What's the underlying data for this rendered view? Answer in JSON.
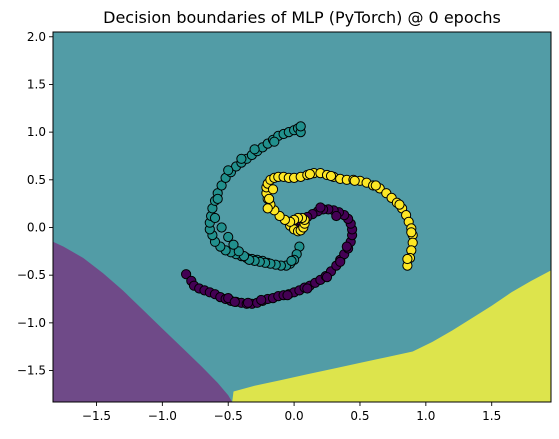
{
  "chart_data": {
    "type": "scatter",
    "title": "Decision boundaries of MLP (PyTorch) @ 0 epochs",
    "xlabel": "",
    "ylabel": "",
    "xlim": [
      -1.83,
      1.95
    ],
    "ylim": [
      -1.83,
      2.05
    ],
    "xticks": [
      -1.5,
      -1.0,
      -0.5,
      0.0,
      0.5,
      1.0,
      1.5
    ],
    "xtick_labels": [
      "−1.5",
      "−1.0",
      "−0.5",
      "0.0",
      "0.5",
      "1.0",
      "1.5"
    ],
    "yticks": [
      -1.5,
      -1.0,
      -0.5,
      0.0,
      0.5,
      1.0,
      1.5,
      2.0
    ],
    "ytick_labels": [
      "−1.5",
      "−1.0",
      "−0.5",
      "0.0",
      "0.5",
      "1.0",
      "1.5",
      "2.0"
    ],
    "grid": false,
    "legend": "none",
    "regions": [
      {
        "class": 0,
        "color": "#6f4a88",
        "boundary": [
          [
            -1.83,
            -0.15
          ],
          [
            -1.75,
            -0.2
          ],
          [
            -1.6,
            -0.32
          ],
          [
            -1.45,
            -0.48
          ],
          [
            -1.3,
            -0.66
          ],
          [
            -1.15,
            -0.86
          ],
          [
            -1.0,
            -1.06
          ],
          [
            -0.85,
            -1.26
          ],
          [
            -0.7,
            -1.46
          ],
          [
            -0.58,
            -1.63
          ],
          [
            -0.5,
            -1.76
          ],
          [
            -0.47,
            -1.83
          ]
        ]
      },
      {
        "class": 1,
        "color": "#529ca6"
      },
      {
        "class": 2,
        "color": "#dde44c",
        "boundary": [
          [
            -0.47,
            -1.83
          ],
          [
            -0.46,
            -1.72
          ],
          [
            -0.3,
            -1.66
          ],
          [
            -0.1,
            -1.6
          ],
          [
            0.1,
            -1.54
          ],
          [
            0.3,
            -1.48
          ],
          [
            0.5,
            -1.42
          ],
          [
            0.7,
            -1.36
          ],
          [
            0.9,
            -1.3
          ],
          [
            1.05,
            -1.2
          ],
          [
            1.2,
            -1.08
          ],
          [
            1.35,
            -0.95
          ],
          [
            1.5,
            -0.82
          ],
          [
            1.65,
            -0.68
          ],
          [
            1.8,
            -0.56
          ],
          [
            1.95,
            -0.45
          ]
        ]
      }
    ],
    "series": [
      {
        "class": 0,
        "color": "#440154",
        "x": [
          -0.82,
          -0.78,
          -0.76,
          -0.72,
          -0.68,
          -0.64,
          -0.6,
          -0.56,
          -0.52,
          -0.48,
          -0.44,
          -0.4,
          -0.36,
          -0.32,
          -0.28,
          -0.24,
          -0.2,
          -0.16,
          -0.12,
          -0.08,
          -0.04,
          0.0,
          0.04,
          0.08,
          0.12,
          0.16,
          0.2,
          0.24,
          0.28,
          0.32,
          0.35,
          0.38,
          0.41,
          0.43,
          0.44,
          0.44,
          0.43,
          0.41,
          0.38,
          0.34,
          0.3,
          0.26,
          0.22,
          0.18,
          0.14,
          0.1,
          0.06,
          0.03,
          0.01,
          -0.5,
          -0.45,
          -0.35,
          -0.25,
          -0.05,
          0.1,
          0.25,
          0.35,
          0.4,
          0.32,
          0.2
        ],
        "y": [
          -0.49,
          -0.56,
          -0.61,
          -0.64,
          -0.66,
          -0.68,
          -0.7,
          -0.73,
          -0.75,
          -0.77,
          -0.78,
          -0.79,
          -0.8,
          -0.8,
          -0.79,
          -0.77,
          -0.75,
          -0.74,
          -0.72,
          -0.71,
          -0.7,
          -0.68,
          -0.66,
          -0.63,
          -0.61,
          -0.58,
          -0.55,
          -0.51,
          -0.46,
          -0.4,
          -0.34,
          -0.28,
          -0.22,
          -0.15,
          -0.08,
          -0.02,
          0.04,
          0.09,
          0.13,
          0.16,
          0.18,
          0.19,
          0.19,
          0.17,
          0.14,
          0.11,
          0.07,
          0.03,
          -0.01,
          -0.74,
          -0.78,
          -0.79,
          -0.76,
          -0.71,
          -0.64,
          -0.52,
          -0.36,
          -0.2,
          0.12,
          0.21
        ]
      },
      {
        "class": 1,
        "color": "#21908d",
        "x": [
          -0.2,
          -0.24,
          -0.28,
          -0.32,
          -0.36,
          -0.4,
          -0.44,
          -0.48,
          -0.52,
          -0.56,
          -0.6,
          -0.62,
          -0.64,
          -0.64,
          -0.63,
          -0.62,
          -0.6,
          -0.58,
          -0.55,
          -0.52,
          -0.48,
          -0.44,
          -0.4,
          -0.36,
          -0.32,
          -0.28,
          -0.24,
          -0.2,
          -0.16,
          -0.12,
          -0.08,
          -0.04,
          0.0,
          0.03,
          0.05,
          0.04,
          0.02,
          0.0,
          -0.03,
          -0.06,
          -0.1,
          -0.14,
          -0.18,
          -0.22,
          -0.26,
          -0.3,
          -0.34,
          -0.38,
          -0.42,
          -0.46,
          -0.5,
          -0.55,
          -0.6,
          -0.58,
          -0.5,
          -0.4,
          -0.3,
          -0.15,
          0.05,
          -0.02
        ],
        "y": [
          -0.37,
          -0.35,
          -0.34,
          -0.33,
          -0.32,
          -0.3,
          -0.28,
          -0.26,
          -0.24,
          -0.2,
          -0.15,
          -0.08,
          -0.02,
          0.05,
          0.12,
          0.2,
          0.28,
          0.36,
          0.44,
          0.52,
          0.58,
          0.64,
          0.68,
          0.72,
          0.76,
          0.8,
          0.84,
          0.88,
          0.92,
          0.96,
          0.98,
          1.0,
          1.02,
          1.04,
          1.0,
          -0.2,
          -0.28,
          -0.34,
          -0.38,
          -0.4,
          -0.4,
          -0.39,
          -0.38,
          -0.37,
          -0.36,
          -0.35,
          -0.34,
          -0.3,
          -0.25,
          -0.18,
          -0.1,
          0.0,
          0.1,
          0.3,
          0.6,
          0.72,
          0.82,
          0.9,
          1.06,
          -0.35
        ]
      },
      {
        "class": 2,
        "color": "#fde725",
        "x": [
          -0.03,
          0.0,
          0.03,
          0.05,
          0.07,
          0.08,
          0.08,
          0.06,
          0.03,
          0.0,
          -0.03,
          -0.07,
          -0.11,
          -0.15,
          -0.18,
          -0.2,
          -0.21,
          -0.21,
          -0.2,
          -0.18,
          -0.15,
          -0.12,
          -0.08,
          -0.04,
          0.0,
          0.05,
          0.1,
          0.15,
          0.2,
          0.25,
          0.3,
          0.35,
          0.4,
          0.45,
          0.5,
          0.55,
          0.6,
          0.65,
          0.7,
          0.74,
          0.78,
          0.82,
          0.85,
          0.87,
          0.89,
          0.9,
          0.9,
          0.89,
          0.88,
          0.86,
          -0.2,
          -0.16,
          0.12,
          0.28,
          0.46,
          0.62,
          0.8,
          0.89,
          0.86,
          -0.19
        ],
        "y": [
          0.02,
          -0.02,
          -0.04,
          -0.03,
          0.0,
          0.04,
          0.08,
          0.1,
          0.1,
          0.08,
          0.06,
          0.08,
          0.12,
          0.18,
          0.24,
          0.3,
          0.36,
          0.42,
          0.46,
          0.5,
          0.52,
          0.53,
          0.53,
          0.52,
          0.52,
          0.53,
          0.55,
          0.57,
          0.57,
          0.55,
          0.53,
          0.51,
          0.5,
          0.5,
          0.49,
          0.47,
          0.44,
          0.41,
          0.36,
          0.31,
          0.26,
          0.2,
          0.13,
          0.06,
          -0.01,
          -0.08,
          -0.16,
          -0.24,
          -0.32,
          -0.4,
          0.2,
          0.4,
          0.56,
          0.54,
          0.49,
          0.44,
          0.24,
          -0.05,
          -0.33,
          0.3
        ]
      }
    ]
  }
}
